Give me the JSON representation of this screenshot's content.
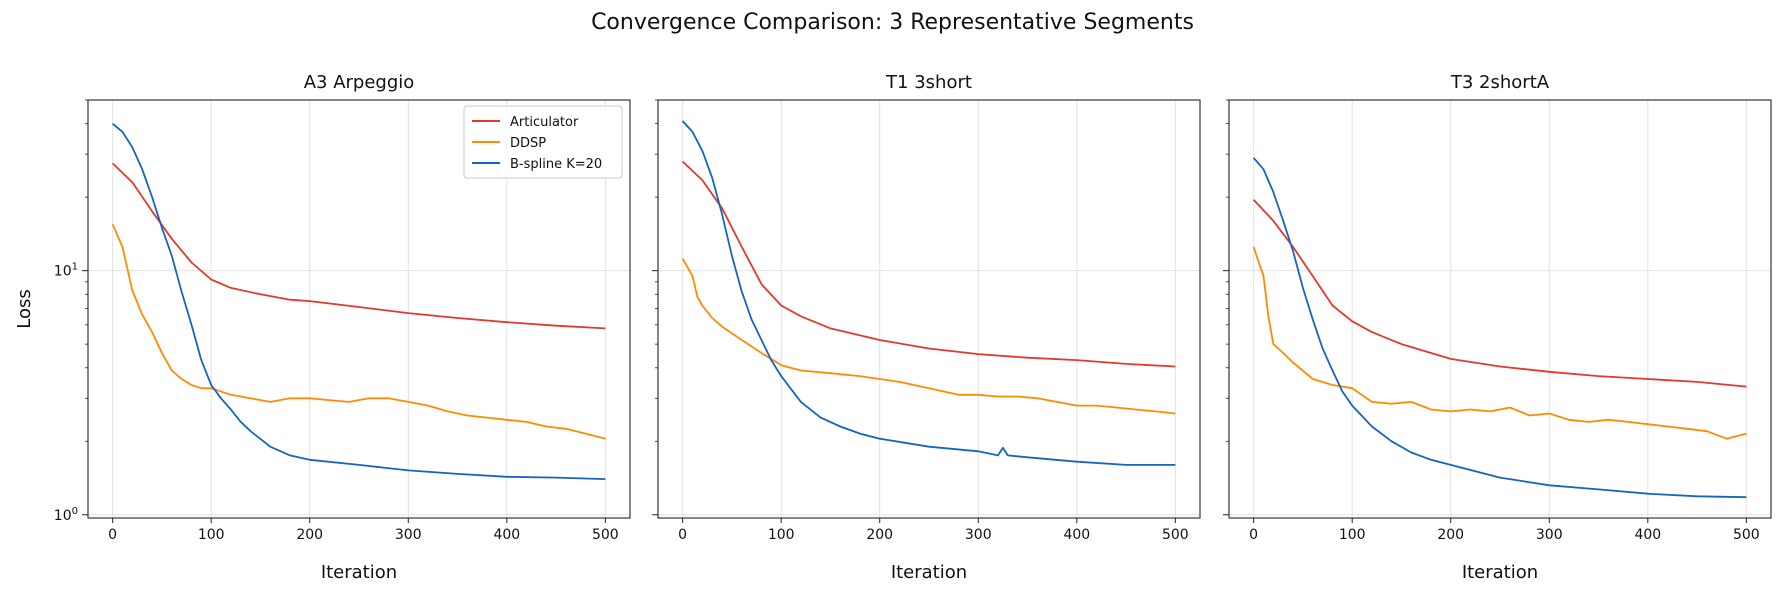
{
  "figure": {
    "title": "Convergence Comparison: 3 Representative Segments"
  },
  "legend": {
    "entries": [
      "Articulator",
      "DDSP",
      "B-spline K=20"
    ],
    "placement": "top-right of first panel"
  },
  "chart_data": [
    {
      "type": "line",
      "title": "A3 Arpeggio",
      "xlabel": "Iteration",
      "ylabel": "Loss",
      "yscale": "log",
      "xlim": [
        -25,
        525
      ],
      "ylim": [
        0.97,
        50
      ],
      "xticks": [
        0,
        100,
        200,
        300,
        400,
        500
      ],
      "yticks": [
        {
          "value": 1,
          "label": "10^0"
        },
        {
          "value": 10,
          "label": "10^1"
        }
      ],
      "grid": true,
      "series": [
        {
          "name": "Articulator",
          "color": "#e03a2f",
          "x": [
            0,
            20,
            40,
            60,
            80,
            100,
            120,
            150,
            180,
            200,
            250,
            300,
            350,
            400,
            450,
            500
          ],
          "y": [
            27.5,
            23,
            17.5,
            13.5,
            10.8,
            9.2,
            8.5,
            8.0,
            7.6,
            7.5,
            7.1,
            6.7,
            6.4,
            6.15,
            5.95,
            5.8
          ]
        },
        {
          "name": "DDSP",
          "color": "#ff8c00",
          "x": [
            0,
            10,
            20,
            30,
            40,
            50,
            60,
            70,
            80,
            90,
            100,
            120,
            140,
            160,
            180,
            200,
            220,
            240,
            260,
            280,
            300,
            320,
            340,
            360,
            380,
            400,
            420,
            440,
            460,
            480,
            500
          ],
          "y": [
            15.5,
            12.5,
            8.3,
            6.6,
            5.6,
            4.6,
            3.9,
            3.6,
            3.4,
            3.3,
            3.3,
            3.1,
            3.0,
            2.9,
            3.0,
            3.0,
            2.95,
            2.9,
            3.0,
            3.0,
            2.9,
            2.8,
            2.65,
            2.55,
            2.5,
            2.45,
            2.4,
            2.3,
            2.25,
            2.15,
            2.05
          ]
        },
        {
          "name": "B-spline K=20",
          "color": "#1565c0",
          "x": [
            0,
            10,
            20,
            30,
            40,
            50,
            60,
            70,
            80,
            90,
            100,
            110,
            120,
            130,
            140,
            160,
            180,
            200,
            250,
            300,
            350,
            400,
            450,
            500
          ],
          "y": [
            40,
            37,
            32,
            26,
            20,
            15,
            11.5,
            8.2,
            6.0,
            4.3,
            3.4,
            3.0,
            2.7,
            2.4,
            2.2,
            1.9,
            1.75,
            1.68,
            1.6,
            1.52,
            1.47,
            1.43,
            1.42,
            1.4
          ]
        }
      ]
    },
    {
      "type": "line",
      "title": "T1 3short",
      "xlabel": "Iteration",
      "ylabel": "",
      "yscale": "log",
      "xlim": [
        -25,
        525
      ],
      "ylim": [
        0.97,
        50
      ],
      "xticks": [
        0,
        100,
        200,
        300,
        400,
        500
      ],
      "yticks": [],
      "grid": true,
      "series": [
        {
          "name": "Articulator",
          "color": "#e03a2f",
          "x": [
            0,
            20,
            40,
            60,
            80,
            100,
            120,
            150,
            200,
            250,
            300,
            350,
            400,
            450,
            500
          ],
          "y": [
            28,
            23.5,
            18,
            12.5,
            8.8,
            7.2,
            6.5,
            5.8,
            5.2,
            4.8,
            4.55,
            4.4,
            4.3,
            4.15,
            4.05
          ]
        },
        {
          "name": "DDSP",
          "color": "#ff8c00",
          "x": [
            0,
            10,
            15,
            20,
            30,
            40,
            60,
            80,
            100,
            120,
            150,
            180,
            200,
            220,
            250,
            280,
            300,
            320,
            340,
            360,
            380,
            400,
            420,
            440,
            460,
            480,
            500
          ],
          "y": [
            11.2,
            9.5,
            7.8,
            7.2,
            6.4,
            5.9,
            5.2,
            4.6,
            4.1,
            3.9,
            3.8,
            3.7,
            3.6,
            3.5,
            3.3,
            3.1,
            3.1,
            3.05,
            3.05,
            3.0,
            2.9,
            2.8,
            2.8,
            2.75,
            2.7,
            2.65,
            2.6
          ]
        },
        {
          "name": "B-spline K=20",
          "color": "#1565c0",
          "x": [
            0,
            10,
            20,
            30,
            40,
            50,
            60,
            70,
            80,
            90,
            100,
            120,
            140,
            160,
            180,
            200,
            250,
            300,
            320,
            325,
            330,
            350,
            400,
            450,
            500
          ],
          "y": [
            41,
            37,
            31,
            24,
            17,
            11.5,
            8.2,
            6.3,
            5.2,
            4.3,
            3.7,
            2.9,
            2.5,
            2.3,
            2.15,
            2.05,
            1.9,
            1.82,
            1.75,
            1.88,
            1.75,
            1.72,
            1.65,
            1.6,
            1.6
          ]
        }
      ]
    },
    {
      "type": "line",
      "title": "T3 2shortA",
      "xlabel": "Iteration",
      "ylabel": "",
      "yscale": "log",
      "xlim": [
        -25,
        525
      ],
      "ylim": [
        0.97,
        50
      ],
      "xticks": [
        0,
        100,
        200,
        300,
        400,
        500
      ],
      "yticks": [],
      "grid": true,
      "series": [
        {
          "name": "Articulator",
          "color": "#e03a2f",
          "x": [
            0,
            20,
            40,
            60,
            80,
            100,
            120,
            150,
            200,
            250,
            300,
            350,
            400,
            450,
            500
          ],
          "y": [
            19.5,
            16,
            12.5,
            9.5,
            7.2,
            6.2,
            5.6,
            5.0,
            4.35,
            4.05,
            3.85,
            3.7,
            3.6,
            3.5,
            3.35
          ]
        },
        {
          "name": "DDSP",
          "color": "#ff8c00",
          "x": [
            0,
            10,
            15,
            20,
            30,
            40,
            60,
            80,
            100,
            120,
            140,
            160,
            180,
            200,
            220,
            240,
            260,
            280,
            300,
            320,
            340,
            360,
            380,
            400,
            420,
            440,
            460,
            480,
            500
          ],
          "y": [
            12.5,
            9.5,
            6.5,
            5.0,
            4.6,
            4.2,
            3.6,
            3.4,
            3.3,
            2.9,
            2.85,
            2.9,
            2.7,
            2.65,
            2.7,
            2.65,
            2.75,
            2.55,
            2.6,
            2.45,
            2.4,
            2.45,
            2.4,
            2.35,
            2.3,
            2.25,
            2.2,
            2.05,
            2.15
          ]
        },
        {
          "name": "B-spline K=20",
          "color": "#1565c0",
          "x": [
            0,
            10,
            20,
            30,
            40,
            50,
            60,
            70,
            80,
            90,
            100,
            120,
            140,
            160,
            180,
            200,
            250,
            300,
            350,
            400,
            450,
            500
          ],
          "y": [
            29,
            26,
            21,
            16,
            12,
            8.5,
            6.3,
            4.8,
            3.9,
            3.2,
            2.8,
            2.3,
            2.0,
            1.8,
            1.68,
            1.6,
            1.42,
            1.32,
            1.27,
            1.22,
            1.19,
            1.18
          ]
        }
      ]
    }
  ]
}
